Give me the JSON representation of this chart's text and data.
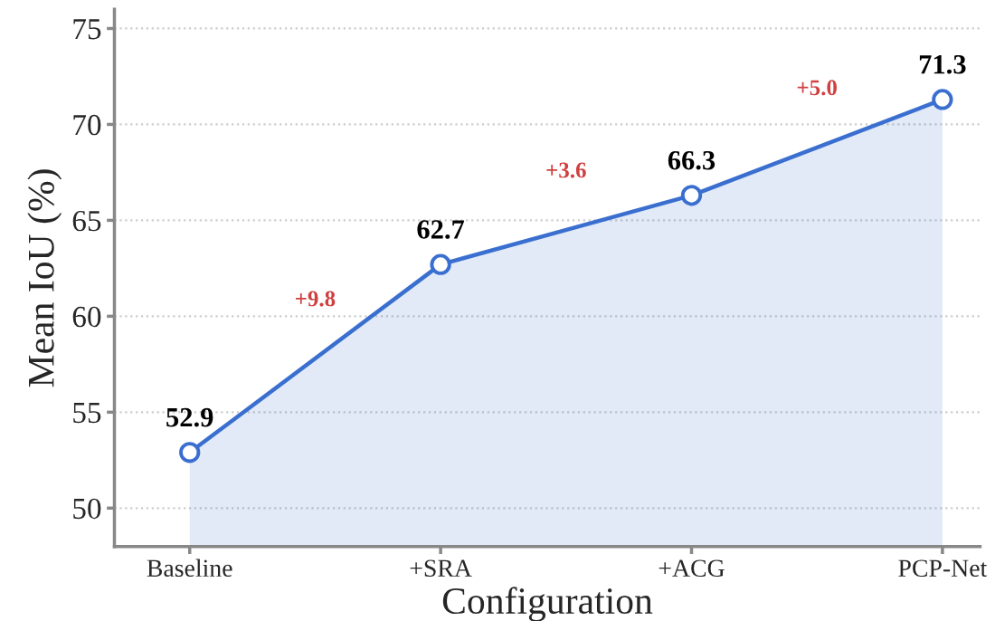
{
  "chart_data": {
    "type": "area",
    "xlabel": "Configuration",
    "ylabel": "Mean IoU (%)",
    "categories": [
      "Baseline",
      "+SRA",
      "+ACG",
      "PCP-Net"
    ],
    "series": [
      {
        "color": "#3a6fd0",
        "values": [
          52.9,
          62.7,
          66.3,
          71.3
        ]
      }
    ],
    "ylim": [
      48,
      76
    ],
    "yticks": [
      50,
      55,
      60,
      65,
      70,
      75
    ],
    "data_labels": true,
    "marker": "circle",
    "line_style": "solid",
    "grid": "y",
    "legend": false,
    "annotations": [
      "+9.8",
      "+3.6",
      "+5.0"
    ]
  }
}
